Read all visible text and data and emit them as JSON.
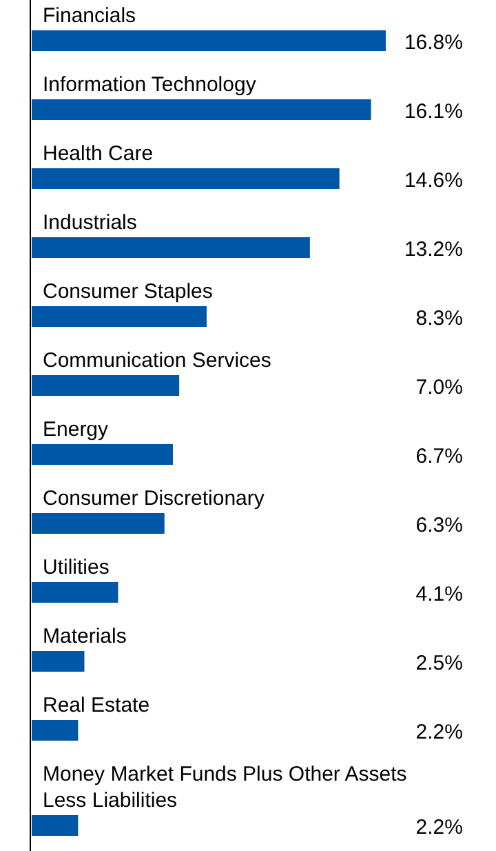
{
  "chart_data": {
    "type": "bar",
    "orientation": "horizontal",
    "data_labels": true,
    "value_labels": [
      "16.8%",
      "16.1%",
      "14.6%",
      "13.2%",
      "8.3%",
      "7.0%",
      "6.7%",
      "6.3%",
      "4.1%",
      "2.5%",
      "2.2%",
      "2.2%"
    ],
    "categories": [
      "Financials",
      "Information Technology",
      "Health Care",
      "Industrials",
      "Consumer Staples",
      "Communication Services",
      "Energy",
      "Consumer Discretionary",
      "Utilities",
      "Materials",
      "Real Estate",
      "Money Market Funds Plus Other Assets\nLess Liabilities"
    ],
    "values": [
      16.8,
      16.1,
      14.6,
      13.2,
      8.3,
      7.0,
      6.7,
      6.3,
      4.1,
      2.5,
      2.2,
      2.2
    ],
    "color": "#0057a8"
  }
}
